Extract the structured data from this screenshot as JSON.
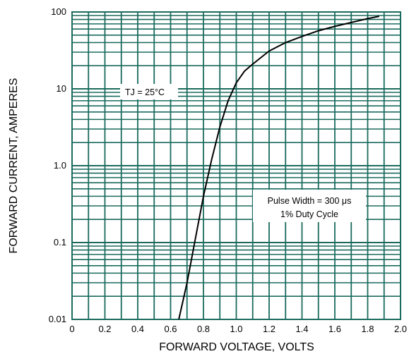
{
  "chart_data": {
    "type": "line",
    "xlabel": "FORWARD VOLTAGE, VOLTS",
    "ylabel": "FORWARD CURRENT, AMPERES",
    "xlim": [
      0,
      2.0
    ],
    "ylim": [
      0.01,
      100
    ],
    "y_scale": "log",
    "grid": true,
    "x_ticks": [
      "0",
      "0.2",
      "0.4",
      "0.6",
      "0.8",
      "1.0",
      "1.2",
      "1.4",
      "1.6",
      "1.8",
      "2.0"
    ],
    "y_ticks": [
      "0.01",
      "0.1",
      "1.0",
      "10",
      "100"
    ],
    "series": [
      {
        "x": [
          0.65,
          0.7,
          0.75,
          0.8,
          0.85,
          0.9,
          0.95,
          1.0,
          1.05,
          1.1,
          1.2,
          1.3,
          1.4,
          1.5,
          1.6,
          1.7,
          1.8,
          1.87
        ],
        "y": [
          0.01,
          0.03,
          0.11,
          0.4,
          1.2,
          3.2,
          7.0,
          12,
          17,
          21,
          31,
          40,
          48,
          57,
          65,
          73,
          82,
          88
        ]
      }
    ],
    "annotations": {
      "tj": "TJ = 25°C",
      "pulse_line1": "Pulse Width = 300 μs",
      "pulse_line2": "1% Duty Cycle"
    },
    "colors": {
      "grid": "#1a6b5e",
      "curve": "#000000"
    }
  }
}
